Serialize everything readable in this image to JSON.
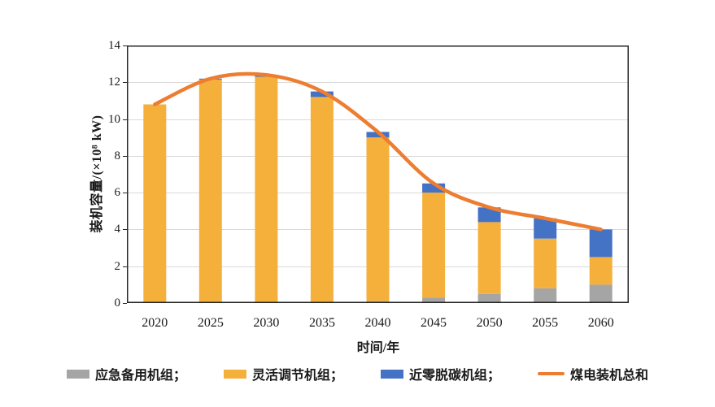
{
  "chart_data": {
    "type": "bar",
    "stacked": true,
    "title": "",
    "xlabel": "时间/年",
    "ylabel": "装机容量/(×10⁸ kW)",
    "categories": [
      "2020",
      "2025",
      "2030",
      "2035",
      "2040",
      "2045",
      "2050",
      "2055",
      "2060"
    ],
    "series": [
      {
        "name": "应急备用机组",
        "color": "#A5A5A5",
        "values": [
          0,
          0,
          0,
          0,
          0.1,
          0.3,
          0.5,
          0.8,
          1.0
        ]
      },
      {
        "name": "灵活调节机组",
        "color": "#F5B03C",
        "values": [
          10.8,
          12.15,
          12.3,
          11.2,
          8.9,
          5.7,
          3.9,
          2.7,
          1.5
        ]
      },
      {
        "name": "近零脱碳机组",
        "color": "#4472C4",
        "values": [
          0,
          0.05,
          0.1,
          0.3,
          0.3,
          0.5,
          0.8,
          1.1,
          1.5
        ]
      }
    ],
    "line_series": {
      "name": "煤电装机总和",
      "color": "#ED7D31",
      "values": [
        10.8,
        12.2,
        12.4,
        11.5,
        9.3,
        6.5,
        5.2,
        4.6,
        4.0
      ]
    },
    "ylim": [
      0,
      14
    ],
    "yticks": [
      "0",
      "2",
      "4",
      "6",
      "8",
      "10",
      "12",
      "14"
    ],
    "grid": true,
    "gridline_color": "#D9D9D9",
    "frame_color": "#262626",
    "legend_position": "bottom"
  },
  "axes": {
    "x_title": "时间/年",
    "y_title": "装机容量/(×10⁸ kW)"
  },
  "legend": {
    "items": [
      {
        "label": "应急备用机组；",
        "color": "#A5A5A5",
        "kind": "rect"
      },
      {
        "label": "灵活调节机组；",
        "color": "#F5B03C",
        "kind": "rect"
      },
      {
        "label": "近零脱碳机组；",
        "color": "#4472C4",
        "kind": "rect"
      },
      {
        "label": "煤电装机总和",
        "color": "#ED7D31",
        "kind": "line"
      }
    ]
  }
}
